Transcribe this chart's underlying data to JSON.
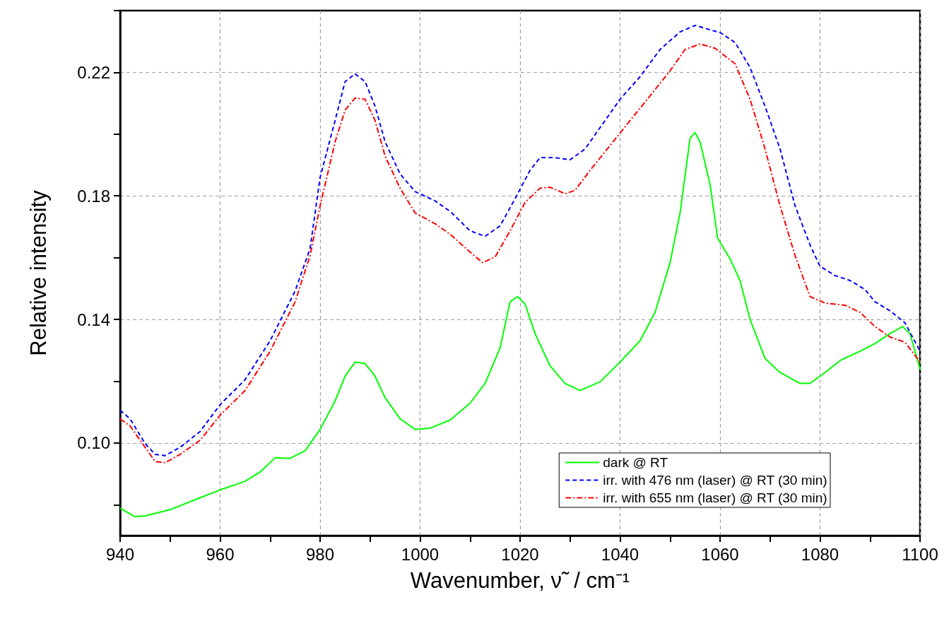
{
  "chart_data": {
    "type": "line",
    "xlabel": "Wavenumber, ν̃  / cm⁻¹",
    "ylabel": "Relative intensity",
    "xlim": [
      940,
      1100
    ],
    "ylim": [
      0.07,
      0.24
    ],
    "xticks": [
      940,
      {
        "value": 950,
        "label": null
      },
      960,
      {
        "value": 970,
        "label": null
      },
      980,
      {
        "value": 990,
        "label": null
      },
      1000,
      {
        "value": 1010,
        "label": null
      },
      1020,
      {
        "value": 1030,
        "label": null
      },
      1040,
      {
        "value": 1050,
        "label": null
      },
      1060,
      {
        "value": 1070,
        "label": null
      },
      1080,
      {
        "value": 1090,
        "label": null
      },
      1100
    ],
    "yticks": [
      {
        "value": 0.08,
        "label": null
      },
      "0.10",
      {
        "value": 0.12,
        "label": null
      },
      0.14,
      {
        "value": 0.16,
        "label": null
      },
      0.18,
      {
        "value": 0.2,
        "label": null
      },
      0.22,
      {
        "value": 0.24,
        "label": null
      }
    ],
    "grid": true,
    "legend": "bottom right",
    "series": [
      {
        "name": "dark @ RT",
        "color": "#00ff00",
        "line_style": "solid",
        "x": [
          940,
          943,
          945,
          950,
          955,
          960,
          965,
          968,
          971,
          974,
          977,
          980,
          983,
          985,
          987,
          989,
          991,
          993,
          996,
          999,
          1002,
          1006,
          1010,
          1013,
          1016,
          1018,
          1019.5,
          1021,
          1023,
          1026,
          1029,
          1032,
          1036,
          1040,
          1044,
          1047,
          1050,
          1052,
          1054,
          1055,
          1056,
          1058,
          1059.5,
          1062,
          1064,
          1066,
          1069,
          1072,
          1076,
          1078,
          1081,
          1084,
          1088,
          1091,
          1094,
          1096.5,
          1098,
          1100
        ],
        "values": [
          0.0789,
          0.0761,
          0.0764,
          0.0784,
          0.0816,
          0.0848,
          0.0876,
          0.0906,
          0.0952,
          0.095,
          0.0975,
          0.1044,
          0.1136,
          0.1216,
          0.1262,
          0.1257,
          0.1216,
          0.1147,
          0.1078,
          0.1044,
          0.1048,
          0.1074,
          0.1129,
          0.1193,
          0.1308,
          0.1457,
          0.1474,
          0.145,
          0.1354,
          0.125,
          0.1193,
          0.117,
          0.1198,
          0.1262,
          0.1331,
          0.1423,
          0.1584,
          0.1745,
          0.1986,
          0.2005,
          0.1975,
          0.1837,
          0.1664,
          0.1596,
          0.1526,
          0.14,
          0.1274,
          0.1228,
          0.1193,
          0.1193,
          0.1228,
          0.1267,
          0.1297,
          0.1322,
          0.1354,
          0.1377,
          0.1354,
          0.1239
        ]
      },
      {
        "name": "irr. with 476 nm (laser) @ RT (30 min)",
        "color": "#0000ff",
        "line_style": "dashed",
        "x": [
          940,
          942,
          945,
          947,
          949,
          952,
          956,
          960,
          965,
          970,
          975,
          978,
          980,
          983,
          985,
          987,
          989,
          991,
          993,
          996,
          999,
          1003,
          1006,
          1010,
          1013,
          1016,
          1019,
          1022,
          1024,
          1027,
          1030,
          1033,
          1036,
          1040,
          1044,
          1048,
          1052,
          1055,
          1058,
          1060,
          1063,
          1066,
          1069,
          1072,
          1075,
          1078,
          1080,
          1083,
          1086,
          1089,
          1091,
          1094,
          1097,
          1100
        ],
        "values": [
          0.1106,
          0.1078,
          0.0998,
          0.0963,
          0.0959,
          0.0986,
          0.1037,
          0.1124,
          0.1205,
          0.1331,
          0.1492,
          0.163,
          0.186,
          0.2044,
          0.217,
          0.2195,
          0.217,
          0.209,
          0.1975,
          0.1871,
          0.1814,
          0.1784,
          0.175,
          0.1687,
          0.1669,
          0.1703,
          0.1791,
          0.1883,
          0.1924,
          0.1924,
          0.1917,
          0.1952,
          0.2021,
          0.2113,
          0.2186,
          0.2274,
          0.2331,
          0.2352,
          0.2338,
          0.2329,
          0.2297,
          0.2216,
          0.209,
          0.1952,
          0.1768,
          0.1641,
          0.1572,
          0.1542,
          0.1526,
          0.1497,
          0.1457,
          0.1428,
          0.1389,
          0.1297
        ]
      },
      {
        "name": "irr. with 655 nm (laser) @ RT (30 min)",
        "color": "#ff0000",
        "line_style": "dashdot",
        "x": [
          940,
          942,
          945,
          947,
          949,
          952,
          956,
          960,
          965,
          970,
          975,
          978,
          980,
          983,
          985,
          987,
          989,
          991,
          993,
          996,
          999,
          1003,
          1006,
          1010,
          1012.5,
          1015,
          1018,
          1021,
          1024,
          1026,
          1029,
          1031,
          1034,
          1038,
          1042,
          1046,
          1050,
          1053,
          1056,
          1059,
          1063,
          1066,
          1069,
          1072,
          1075,
          1078,
          1081,
          1085,
          1088,
          1091,
          1094,
          1097,
          1100
        ],
        "values": [
          0.1078,
          0.1055,
          0.0986,
          0.094,
          0.0936,
          0.0963,
          0.1009,
          0.109,
          0.117,
          0.1297,
          0.1457,
          0.1607,
          0.1768,
          0.1975,
          0.2078,
          0.2117,
          0.2113,
          0.2044,
          0.1929,
          0.1825,
          0.1745,
          0.171,
          0.1676,
          0.1618,
          0.1584,
          0.1602,
          0.1687,
          0.1779,
          0.1825,
          0.1828,
          0.1807,
          0.1818,
          0.1883,
          0.1963,
          0.2044,
          0.2124,
          0.2205,
          0.2274,
          0.2292,
          0.2278,
          0.2228,
          0.2113,
          0.1952,
          0.1768,
          0.1607,
          0.1474,
          0.1453,
          0.1446,
          0.1423,
          0.1377,
          0.1343,
          0.1326,
          0.1262
        ]
      }
    ]
  }
}
